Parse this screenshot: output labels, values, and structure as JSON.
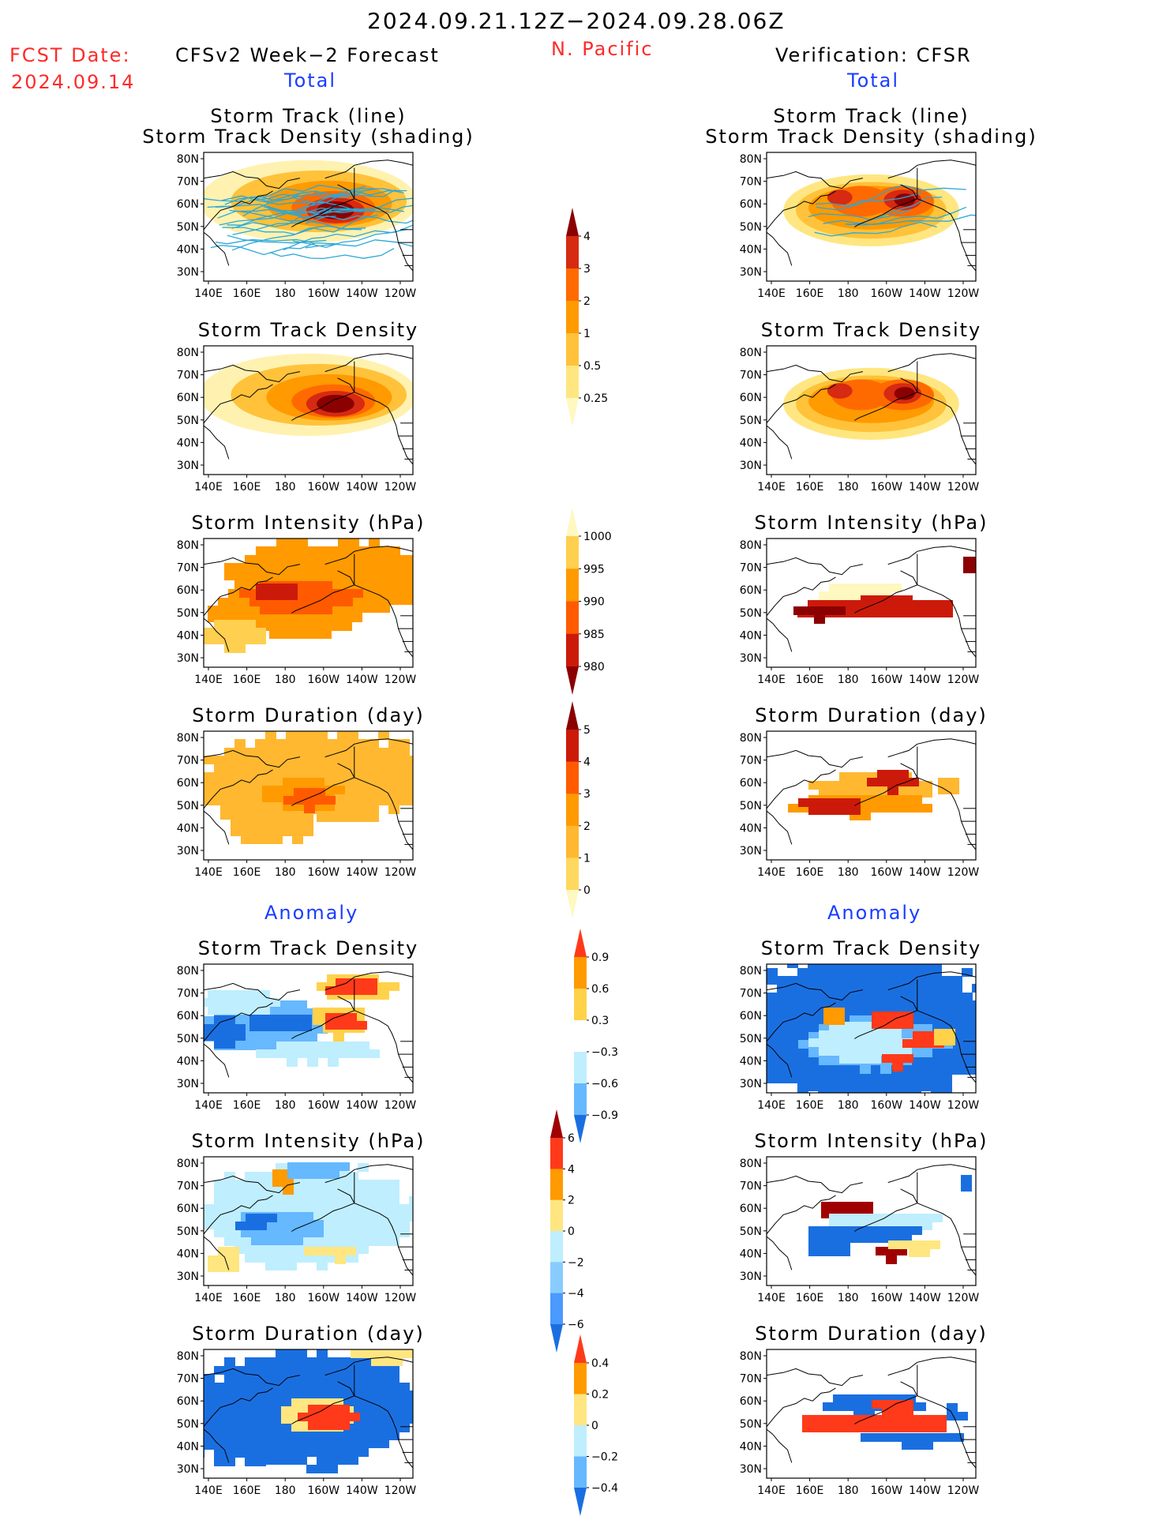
{
  "header": {
    "period": "2024.09.21.12Z−2024.09.28.06Z",
    "region": "N. Pacific",
    "fcst_label": "FCST Date:",
    "fcst_date": "2024.09.14",
    "left_title": "CFSv2 Week−2 Forecast",
    "right_title": "Verification: CFSR",
    "total_left": "Total",
    "total_right": "Total",
    "anomaly_left": "Anomaly",
    "anomaly_right": "Anomaly"
  },
  "panel_titles": {
    "track_line": "Storm Track (line)",
    "track_shading": "Storm Track Density (shading)",
    "density": "Storm Track Density",
    "intensity": "Storm Intensity (hPa)",
    "duration": "Storm Duration (day)"
  },
  "axes": {
    "lat_labels": [
      "80N",
      "70N",
      "60N",
      "50N",
      "40N",
      "30N"
    ],
    "lon_labels": [
      "140E",
      "160E",
      "180",
      "160W",
      "140W",
      "120W"
    ]
  },
  "colorbars": {
    "density_total": {
      "labels": [
        "4",
        "3",
        "2",
        "1",
        "0.5",
        "0.25"
      ],
      "colors": [
        "#8b0000",
        "#d62a12",
        "#ff6a00",
        "#ff9a00",
        "#ffc23a",
        "#ffe680",
        "#fff8c0"
      ]
    },
    "intensity_total": {
      "labels": [
        "1000",
        "995",
        "990",
        "985",
        "980"
      ],
      "colors": [
        "#fff8c0",
        "#ffcf50",
        "#ff9a00",
        "#ff5a00",
        "#cc1a0a",
        "#8b0000"
      ]
    },
    "duration_total": {
      "labels": [
        "5",
        "4",
        "3",
        "2",
        "1",
        "0"
      ],
      "colors": [
        "#8b0000",
        "#cc1a0a",
        "#ff5a00",
        "#ff9a00",
        "#ffb830",
        "#ffd860",
        "#fff8c0"
      ]
    },
    "density_anom": {
      "labels": [
        "0.9",
        "0.6",
        "0.3",
        "−0.3",
        "−0.6",
        "−0.9"
      ],
      "colors": [
        "#ff3a1a",
        "#ff9a00",
        "#ffd24a",
        "#ffffff",
        "#bfeeff",
        "#66b8ff",
        "#1a6fe0"
      ]
    },
    "intensity_anom": {
      "labels": [
        "6",
        "4",
        "2",
        "0",
        "−2",
        "−4",
        "−6"
      ],
      "colors": [
        "#a00000",
        "#ff3a1a",
        "#ff9a00",
        "#ffe680",
        "#bfeeff",
        "#88ccff",
        "#4a99ff",
        "#1a6fe0"
      ]
    },
    "duration_anom": {
      "labels": [
        "0.4",
        "0.2",
        "0",
        "−0.2",
        "−0.4"
      ],
      "colors": [
        "#ff3a1a",
        "#ff9a00",
        "#ffe680",
        "#bfeeff",
        "#66b8ff",
        "#1a6fe0"
      ]
    }
  }
}
